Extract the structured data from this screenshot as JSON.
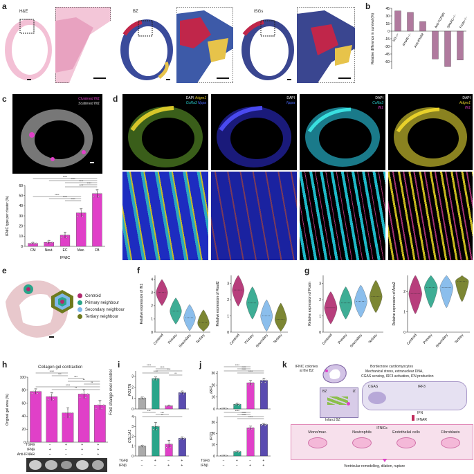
{
  "panels": {
    "a": {
      "label": "a",
      "t1": "H&E",
      "t2": "BZ",
      "t3": "ISGs"
    },
    "b": {
      "label": "b"
    },
    "c": {
      "label": "c",
      "legend1": "Clustered Ifit1",
      "legend2": "Scattered Ifit1"
    },
    "d": {
      "label": "d",
      "l1a": "DAPI",
      "l1b": "Adgre1",
      "l1c": "Col6a3",
      "l1d": "Nppa",
      "l2a": "DAPI",
      "l2b": "Nppa",
      "l3a": "DAPI",
      "l3b": "Col6a3",
      "l3c": "Ifit1",
      "l4a": "DAPI",
      "l4b": "Adgre1",
      "l4c": "Ifit1"
    },
    "e": {
      "label": "e",
      "legend": [
        "Centroid",
        "Primary neighbour",
        "Secondary neighbour",
        "Tertiary neighbour"
      ],
      "colors": [
        "#b02a6e",
        "#2aa58a",
        "#7fb8ea",
        "#6e7a1e"
      ]
    },
    "f": {
      "label": "f"
    },
    "g": {
      "label": "g"
    },
    "h": {
      "label": "h",
      "title": "Collagen gel contraction",
      "row_tgfb": "TGFβ",
      "row_ifnb": "IFNβ",
      "row_anti": "Anti-IFNAR",
      "signs_tgfb": [
        "−",
        "−",
        "+",
        "+",
        "+"
      ],
      "signs_ifnb": [
        "−",
        "+",
        "−",
        "+",
        "+"
      ],
      "signs_anti": [
        "−",
        "−",
        "−",
        "−",
        "+"
      ]
    },
    "i": {
      "label": "i",
      "row_tgfb": "TGFβ",
      "row_ifnb": "IFNβ",
      "signs_tgfb": [
        "−",
        "+",
        "−",
        "+"
      ],
      "signs_ifnb": [
        "−",
        "−",
        "+",
        "+"
      ]
    },
    "j": {
      "label": "j",
      "row_tgfb": "TGFβ",
      "row_ifnb": "IFNβ",
      "signs_tgfb": [
        "−",
        "+",
        "−",
        "+"
      ],
      "signs_ifnb": [
        "−",
        "−",
        "+",
        "+"
      ]
    },
    "k": {
      "label": "k",
      "ifnic_colonies": "IFNIC colonies at the BZ",
      "bz": "BZ",
      "iz": "IZ",
      "infarct_bz": "Infarct BZ",
      "cardio_title": "Borderzone cardiomyocytes",
      "cardio_l1": "Mechanical stress, extranuclear DNA,",
      "cardio_l2": "CGAS sensing, IRF3 activation, IFN production",
      "cgas": "CGAS",
      "irf3": "IRF3",
      "ifn": "IFN",
      "ifnar": "IFNAR",
      "ifnics": "IFNICs",
      "cells": [
        "Mono/mac.",
        "Neutrophils",
        "Endothelial cells",
        "Fibroblasts"
      ],
      "outcome": "Ventricular remodelling, dilation, rupture"
    }
  },
  "chart_data": [
    {
      "panel": "b",
      "type": "bar",
      "categories": [
        "Irf3−/−",
        "IFNAR−/−",
        "Anti-IFNAR",
        "Anti-TGFBR",
        "SPARC−/−",
        "Postn−/−"
      ],
      "values": [
        40,
        37,
        19,
        -55,
        -70,
        -57
      ],
      "ylabel": "Relative difference in survival (%)",
      "yticks": [
        45,
        30,
        15,
        0,
        -15,
        -30,
        -45,
        -60
      ],
      "ylim": [
        -75,
        45
      ],
      "color": "#b07a9e"
    },
    {
      "panel": "c",
      "type": "bar",
      "categories": [
        "CM",
        "Neut.",
        "EC",
        "Mac.",
        "FB"
      ],
      "values": [
        3,
        4,
        11,
        33,
        52
      ],
      "errors": [
        1,
        2,
        3,
        4,
        4
      ],
      "xlabel": "IFNIC",
      "ylabel": "IFNIC type per cluster (%)",
      "yticks": [
        0,
        10,
        20,
        30,
        40,
        50,
        60
      ],
      "ylim": [
        0,
        60
      ],
      "sig": [
        "****",
        "****",
        "****",
        "****",
        "****",
        "****",
        "****",
        "****"
      ],
      "color": "#e040c8"
    },
    {
      "panel": "f1",
      "type": "violin",
      "categories": [
        "Centroid",
        "Primary",
        "Secondary",
        "Tertiary"
      ],
      "ylabel": "Relative expression of Ifit1",
      "yticks": [
        0,
        1,
        2,
        3,
        4
      ],
      "ylim": [
        0,
        4.3
      ],
      "medians": [
        3.0,
        1.6,
        1.1,
        0.7
      ],
      "colors": [
        "#b02a6e",
        "#2aa58a",
        "#7fb8ea",
        "#6e7a1e"
      ]
    },
    {
      "panel": "f2",
      "type": "violin",
      "categories": [
        "Centroid",
        "Primary",
        "Secondary",
        "Tertiary"
      ],
      "ylabel": "Relative expression of Rsad2",
      "yticks": [
        0,
        1,
        2,
        3
      ],
      "ylim": [
        0,
        3.5
      ],
      "medians": [
        2.6,
        1.8,
        1.0,
        0.8
      ],
      "colors": [
        "#b02a6e",
        "#2aa58a",
        "#7fb8ea",
        "#6e7a1e"
      ]
    },
    {
      "panel": "g1",
      "type": "violin",
      "categories": [
        "Centroid",
        "Primary",
        "Secondary",
        "Tertiary"
      ],
      "ylabel": "Relative expression of Postn",
      "yticks": [
        0,
        1,
        2,
        3
      ],
      "ylim": [
        0,
        3.5
      ],
      "medians": [
        1.5,
        1.8,
        1.9,
        2.2
      ],
      "colors": [
        "#b02a6e",
        "#2aa58a",
        "#7fb8ea",
        "#6e7a1e"
      ]
    },
    {
      "panel": "g2",
      "type": "violin",
      "categories": [
        "Centroid",
        "Primary",
        "Secondary",
        "Tertiary"
      ],
      "ylabel": "Relative expression of Acta2",
      "yticks": [
        0,
        1,
        2
      ],
      "ylim": [
        0,
        2.8
      ],
      "medians": [
        1.9,
        2.2,
        2.2,
        2.5
      ],
      "colors": [
        "#b02a6e",
        "#2aa58a",
        "#7fb8ea",
        "#6e7a1e"
      ]
    },
    {
      "panel": "h",
      "type": "bar",
      "values": [
        78,
        70,
        45,
        74,
        57
      ],
      "errors": [
        4,
        6,
        8,
        7,
        7
      ],
      "ylabel": "Original gel area (%)",
      "yticks": [
        0,
        20,
        40,
        60,
        80,
        100
      ],
      "ylim": [
        0,
        100
      ],
      "sig": [
        "****",
        "***",
        "***",
        "**",
        "**",
        "****",
        "**"
      ],
      "color": "#e040c8"
    },
    {
      "panel": "i1",
      "type": "bar",
      "values": [
        1.0,
        2.8,
        0.3,
        1.5
      ],
      "errors": [
        0.1,
        0.15,
        0.05,
        0.15
      ],
      "ylabel": "POSTN",
      "yticks": [
        0,
        1,
        2,
        3
      ],
      "ylim": [
        0,
        3.5
      ],
      "sig": [
        "****",
        "****",
        "***",
        "****",
        "**"
      ],
      "colors": [
        "#aaaaaa",
        "#2aa58a",
        "#e040c8",
        "#5a4bb0"
      ]
    },
    {
      "panel": "i2",
      "type": "bar",
      "values": [
        1.0,
        3.0,
        1.2,
        1.8
      ],
      "errors": [
        0.1,
        0.4,
        0.4,
        0.15
      ],
      "ylabel": "COL1A1",
      "yticks": [
        0,
        1,
        2,
        3,
        4
      ],
      "ylim": [
        0,
        4
      ],
      "sig": [
        "***",
        "***",
        "**"
      ],
      "colors": [
        "#aaaaaa",
        "#2aa58a",
        "#e040c8",
        "#5a4bb0"
      ],
      "shared_ylabel": "Fold change over control"
    },
    {
      "panel": "j1",
      "type": "bar",
      "values": [
        0.5,
        4,
        22,
        24
      ],
      "errors": [
        0.2,
        1,
        2,
        2
      ],
      "ylabel": "IRF7",
      "yticks": [
        0,
        10,
        20,
        30
      ],
      "ylim": [
        0,
        32
      ],
      "sig": [
        "****",
        "****",
        "****",
        "****"
      ],
      "colors": [
        "#aaaaaa",
        "#2aa58a",
        "#e040c8",
        "#5a4bb0"
      ]
    },
    {
      "panel": "j2",
      "type": "bar",
      "values": [
        0.5,
        4,
        25,
        28
      ],
      "errors": [
        0.2,
        0.5,
        1.5,
        1
      ],
      "ylabel": "IFIT3",
      "yticks": [
        0,
        10,
        20,
        30
      ],
      "ylim": [
        0,
        35
      ],
      "sig": [
        "****",
        "****",
        "****",
        "****"
      ],
      "colors": [
        "#aaaaaa",
        "#2aa58a",
        "#e040c8",
        "#5a4bb0"
      ]
    }
  ]
}
